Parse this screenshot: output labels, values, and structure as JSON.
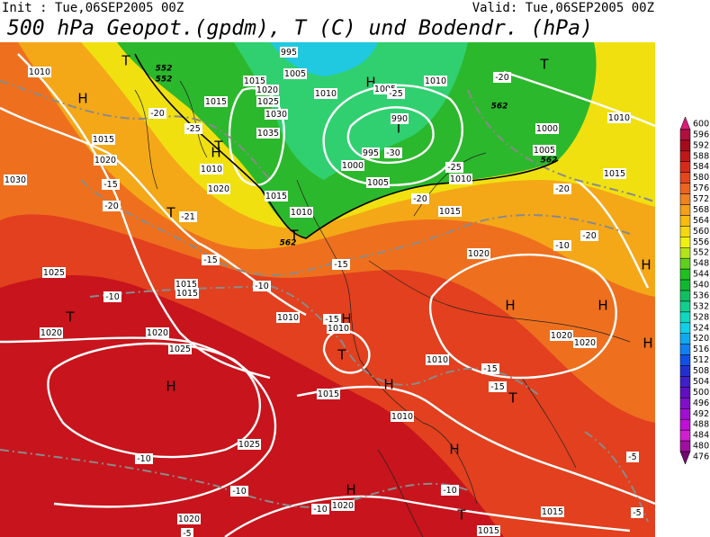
{
  "header": {
    "init": "Init : Tue,06SEP2005 00Z",
    "valid": "Valid: Tue,06SEP2005 00Z",
    "title": "500 hPa Geopot.(gpdm), T (C) und Bodendr. (hPa)"
  },
  "colorbar": {
    "levels": [
      600,
      596,
      592,
      588,
      584,
      580,
      576,
      572,
      568,
      564,
      560,
      556,
      552,
      548,
      544,
      540,
      536,
      532,
      528,
      524,
      520,
      516,
      512,
      508,
      504,
      500,
      496,
      492,
      488,
      484,
      480,
      476
    ],
    "colors": [
      "#d81c78",
      "#b01040",
      "#a40c1c",
      "#c01818",
      "#d82a1a",
      "#e4461e",
      "#ec6420",
      "#f08220",
      "#f4a018",
      "#f6bc10",
      "#f4d810",
      "#f0f010",
      "#b4e418",
      "#60d020",
      "#20c020",
      "#10b830",
      "#10c060",
      "#10d090",
      "#10d8c0",
      "#10d0e8",
      "#10a8f0",
      "#1080f0",
      "#1050e8",
      "#2030d0",
      "#4020c8",
      "#6010c0",
      "#8010c8",
      "#a010d0",
      "#c010d8",
      "#d020d0",
      "#a010a0",
      "#700870"
    ]
  },
  "map": {
    "highs_lows": [
      "H",
      "H",
      "H",
      "H",
      "H",
      "H",
      "H",
      "H",
      "H",
      "H",
      "H",
      "H",
      "T",
      "T",
      "T",
      "T",
      "T",
      "T",
      "T",
      "T",
      "T",
      "T"
    ],
    "isobar_labels": [
      "1010",
      "1015",
      "1020",
      "1030",
      "1025",
      "1020",
      "1025",
      "1020",
      "1010",
      "1015",
      "1010",
      "1025",
      "1020",
      "1020",
      "1015",
      "1015",
      "1020",
      "1020",
      "1020",
      "1015",
      "1010",
      "1005",
      "1000",
      "995",
      "990",
      "1005",
      "1010",
      "1010",
      "1000",
      "1005",
      "1010",
      "1015",
      "1015",
      "1010",
      "1020",
      "1010",
      "1015",
      "1020",
      "1025",
      "1030",
      "1035",
      "1015",
      "1005",
      "1015",
      "1015",
      "1010",
      "1010",
      "995"
    ],
    "temp_labels": [
      "-20",
      "-25",
      "-15",
      "-20",
      "-21",
      "-15",
      "-10",
      "-10",
      "-15",
      "-15",
      "-15",
      "-15",
      "-10",
      "-10",
      "-10",
      "-10",
      "-5",
      "-5",
      "-5",
      "-20",
      "-25",
      "-30",
      "-25",
      "-20",
      "-20",
      "-20",
      "-10"
    ],
    "geopot_labels": [
      "552",
      "552",
      "562",
      "562",
      "562"
    ]
  }
}
